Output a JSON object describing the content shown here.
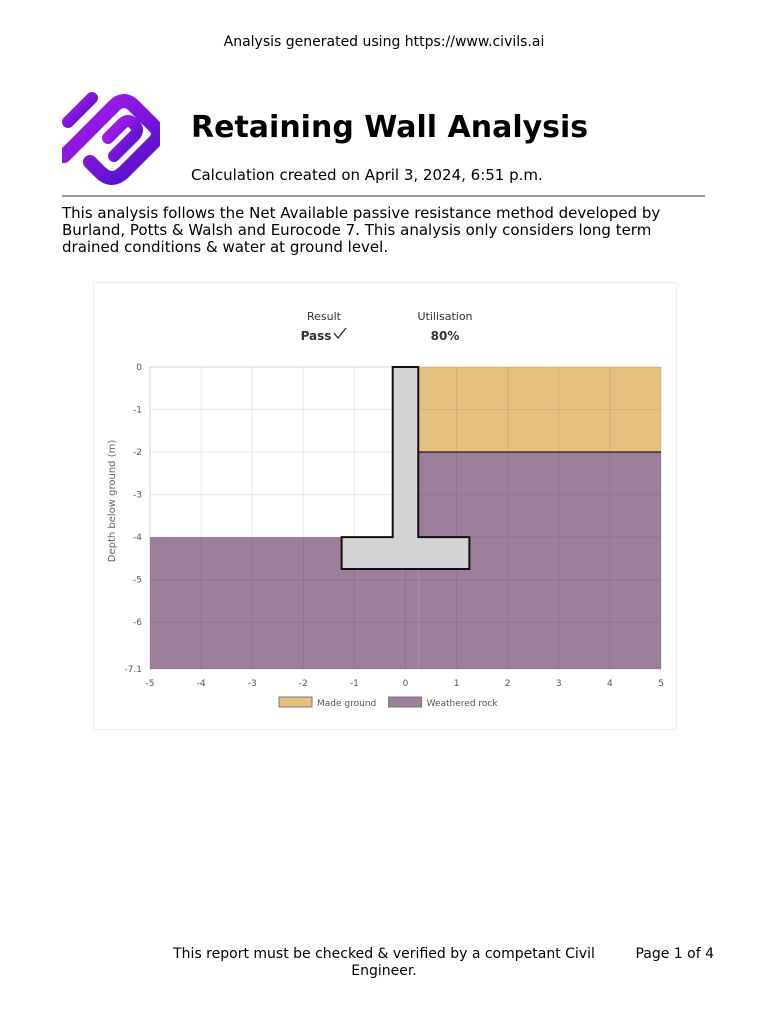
{
  "header": {
    "note": "Analysis generated using https://www.civils.ai"
  },
  "report": {
    "title": "Retaining Wall Analysis",
    "created": "Calculation created on April 3, 2024, 6:51 p.m.",
    "intro": "This analysis follows the Net Available passive resistance method developed by Burland, Potts & Walsh and Eurocode 7. This analysis only considers long term drained conditions & water at ground level."
  },
  "summary": {
    "result_label": "Result",
    "result_value": "Pass",
    "result_icon": "checkmark-icon",
    "utilisation_label": "Utilisation",
    "utilisation_value": "80%"
  },
  "chart_data": {
    "type": "area",
    "ylabel": "Depth below ground (m)",
    "xlim": [
      -5,
      5
    ],
    "ylim": [
      -7.1,
      0
    ],
    "x_ticks": [
      "-5",
      "-4",
      "-3",
      "-2",
      "-1",
      "0",
      "1",
      "2",
      "3",
      "4",
      "5"
    ],
    "y_ticks": [
      "0",
      "-1",
      "-2",
      "-3",
      "-4",
      "-5",
      "-6",
      "-7.1"
    ],
    "grid": true,
    "legend_position": "bottom",
    "layers": [
      {
        "name": "Made ground",
        "color": "#e5c07c",
        "x_range": [
          0.25,
          5
        ],
        "y_range": [
          -2,
          0
        ]
      },
      {
        "name": "Weathered rock",
        "color": "#9c7f9b",
        "x_range": [
          0.25,
          5
        ],
        "y_range": [
          -7.1,
          -2
        ]
      },
      {
        "name": "Weathered rock",
        "color": "#9c7f9b",
        "x_range": [
          -5,
          0.25
        ],
        "y_range": [
          -7.1,
          -4
        ]
      }
    ],
    "wall": {
      "stem": {
        "x": [
          -0.25,
          0.25
        ],
        "y": [
          -4,
          0
        ]
      },
      "base": {
        "x": [
          -1.25,
          1.25
        ],
        "y": [
          -4.75,
          -4
        ]
      },
      "fill": "#d4d4d4"
    },
    "legend": [
      {
        "label": "Made ground",
        "color": "#e5c07c"
      },
      {
        "label": "Weathered rock",
        "color": "#9c7f9b"
      }
    ]
  },
  "footer": {
    "disclaimer": "This report must be checked & verified by a competant Civil Engineer.",
    "page": "Page 1 of 4"
  }
}
